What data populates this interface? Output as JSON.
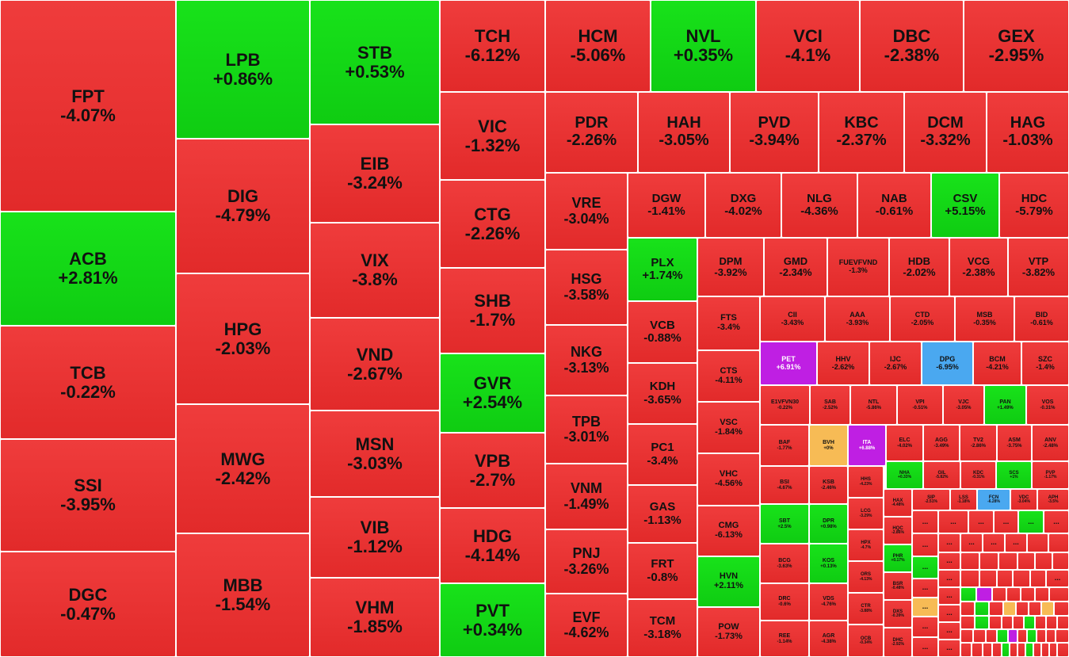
{
  "colors": {
    "down": "#e52d2d",
    "up": "#12d615",
    "ceiling": "#bf1fe3",
    "floor": "#4aa8f0",
    "flat": "#f7bb55"
  },
  "more_label": "...",
  "tiles": [
    {
      "t": "FPT",
      "c": "-4.07%"
    },
    {
      "t": "ACB",
      "c": "+2.81%"
    },
    {
      "t": "TCB",
      "c": "-0.22%"
    },
    {
      "t": "SSI",
      "c": "-3.95%"
    },
    {
      "t": "DGC",
      "c": "-0.47%"
    },
    {
      "t": "LPB",
      "c": "+0.86%"
    },
    {
      "t": "DIG",
      "c": "-4.79%"
    },
    {
      "t": "HPG",
      "c": "-2.03%"
    },
    {
      "t": "MWG",
      "c": "-2.42%"
    },
    {
      "t": "MBB",
      "c": "-1.54%"
    },
    {
      "t": "STB",
      "c": "+0.53%"
    },
    {
      "t": "EIB",
      "c": "-3.24%"
    },
    {
      "t": "VIX",
      "c": "-3.8%"
    },
    {
      "t": "VND",
      "c": "-2.67%"
    },
    {
      "t": "MSN",
      "c": "-3.03%"
    },
    {
      "t": "VIB",
      "c": "-1.12%"
    },
    {
      "t": "VHM",
      "c": "-1.85%"
    },
    {
      "t": "TCH",
      "c": "-6.12%"
    },
    {
      "t": "VIC",
      "c": "-1.32%"
    },
    {
      "t": "CTG",
      "c": "-2.26%"
    },
    {
      "t": "SHB",
      "c": "-1.7%"
    },
    {
      "t": "GVR",
      "c": "+2.54%"
    },
    {
      "t": "VPB",
      "c": "-2.7%"
    },
    {
      "t": "HDG",
      "c": "-4.14%"
    },
    {
      "t": "PVT",
      "c": "+0.34%"
    },
    {
      "t": "HCM",
      "c": "-5.06%"
    },
    {
      "t": "NVL",
      "c": "+0.35%"
    },
    {
      "t": "VCI",
      "c": "-4.1%"
    },
    {
      "t": "DBC",
      "c": "-2.38%"
    },
    {
      "t": "GEX",
      "c": "-2.95%"
    },
    {
      "t": "PDR",
      "c": "-2.26%"
    },
    {
      "t": "HAH",
      "c": "-3.05%"
    },
    {
      "t": "PVD",
      "c": "-3.94%"
    },
    {
      "t": "KBC",
      "c": "-2.37%"
    },
    {
      "t": "DCM",
      "c": "-3.32%"
    },
    {
      "t": "HAG",
      "c": "-1.03%"
    },
    {
      "t": "VRE",
      "c": "-3.04%"
    },
    {
      "t": "HSG",
      "c": "-3.58%"
    },
    {
      "t": "NKG",
      "c": "-3.13%"
    },
    {
      "t": "TPB",
      "c": "-3.01%"
    },
    {
      "t": "VNM",
      "c": "-1.49%"
    },
    {
      "t": "PNJ",
      "c": "-3.26%"
    },
    {
      "t": "EVF",
      "c": "-4.62%"
    },
    {
      "t": "DGW",
      "c": "-1.41%"
    },
    {
      "t": "DXG",
      "c": "-4.02%"
    },
    {
      "t": "NLG",
      "c": "-4.36%"
    },
    {
      "t": "NAB",
      "c": "-0.61%"
    },
    {
      "t": "CSV",
      "c": "+5.15%"
    },
    {
      "t": "HDC",
      "c": "-5.79%"
    },
    {
      "t": "PLX",
      "c": "+1.74%"
    },
    {
      "t": "VCB",
      "c": "-0.88%"
    },
    {
      "t": "KDH",
      "c": "-3.65%"
    },
    {
      "t": "PC1",
      "c": "-3.4%"
    },
    {
      "t": "GAS",
      "c": "-1.13%"
    },
    {
      "t": "FRT",
      "c": "-0.8%"
    },
    {
      "t": "TCM",
      "c": "-3.18%"
    },
    {
      "t": "DPM",
      "c": "-3.92%"
    },
    {
      "t": "GMD",
      "c": "-2.34%"
    },
    {
      "t": "FUEVFVND",
      "c": "-1.3%"
    },
    {
      "t": "HDB",
      "c": "-2.02%"
    },
    {
      "t": "VCG",
      "c": "-2.38%"
    },
    {
      "t": "VTP",
      "c": "-3.82%"
    },
    {
      "t": "FTS",
      "c": "-3.4%"
    },
    {
      "t": "CTS",
      "c": "-4.11%"
    },
    {
      "t": "VSC",
      "c": "-1.84%"
    },
    {
      "t": "VHC",
      "c": "-4.56%"
    },
    {
      "t": "CMG",
      "c": "-6.13%"
    },
    {
      "t": "HVN",
      "c": "+2.11%"
    },
    {
      "t": "POW",
      "c": "-1.73%"
    },
    {
      "t": "CII",
      "c": "-3.43%"
    },
    {
      "t": "AAA",
      "c": "-3.93%"
    },
    {
      "t": "CTD",
      "c": "-2.05%"
    },
    {
      "t": "MSB",
      "c": "-0.35%"
    },
    {
      "t": "BID",
      "c": "-0.61%"
    },
    {
      "t": "PET",
      "c": "+6.91%"
    },
    {
      "t": "HHV",
      "c": "-2.62%"
    },
    {
      "t": "IJC",
      "c": "-2.67%"
    },
    {
      "t": "DPG",
      "c": "-6.95%"
    },
    {
      "t": "BCM",
      "c": "-4.21%"
    },
    {
      "t": "SZC",
      "c": "-1.4%"
    },
    {
      "t": "E1VFVN30",
      "c": "-0.22%"
    },
    {
      "t": "SAB",
      "c": "-2.52%"
    },
    {
      "t": "NTL",
      "c": "-5.86%"
    },
    {
      "t": "VPI",
      "c": "-0.51%"
    },
    {
      "t": "VJC",
      "c": "-3.05%"
    },
    {
      "t": "PAN",
      "c": "+1.49%"
    },
    {
      "t": "VOS",
      "c": "-0.31%"
    },
    {
      "t": "BAF",
      "c": "-1.77%"
    },
    {
      "t": "BVH",
      "c": "+0%"
    },
    {
      "t": "ITA",
      "c": "+6.88%"
    },
    {
      "t": "ELC",
      "c": "-4.02%"
    },
    {
      "t": "AGG",
      "c": "-3.49%"
    },
    {
      "t": "TV2",
      "c": "-2.86%"
    },
    {
      "t": "ASM",
      "c": "-3.75%"
    },
    {
      "t": "ANV",
      "c": "-2.48%"
    },
    {
      "t": "BSI",
      "c": "-4.67%"
    },
    {
      "t": "KSB",
      "c": "-2.46%"
    },
    {
      "t": "SBT",
      "c": "+2.5%"
    },
    {
      "t": "DPR",
      "c": "+0.98%"
    },
    {
      "t": "BCG",
      "c": "-3.63%"
    },
    {
      "t": "KOS",
      "c": "+0.13%"
    },
    {
      "t": "DRC",
      "c": "-0.6%"
    },
    {
      "t": "VDS",
      "c": "-4.76%"
    },
    {
      "t": "REE",
      "c": "-1.14%"
    },
    {
      "t": "AGR",
      "c": "-4.38%"
    },
    {
      "t": "HHS",
      "c": "-4.23%"
    },
    {
      "t": "LCG",
      "c": "-3.29%"
    },
    {
      "t": "HPX",
      "c": "-4.7%"
    },
    {
      "t": "ORS",
      "c": "-4.13%"
    },
    {
      "t": "CTR",
      "c": "-3.88%"
    },
    {
      "t": "OCB",
      "c": "-0.34%"
    },
    {
      "t": "NHA",
      "c": "+0.33%"
    },
    {
      "t": "GIL",
      "c": "-5.82%"
    },
    {
      "t": "KDC",
      "c": "-0.31%"
    },
    {
      "t": "SCS",
      "c": "+1%"
    },
    {
      "t": "PVP",
      "c": "-1.17%"
    },
    {
      "t": "HAX",
      "c": "-4.48%"
    },
    {
      "t": "HQC",
      "c": "-2.86%"
    },
    {
      "t": "PHR",
      "c": "+0.17%"
    },
    {
      "t": "BSR",
      "c": "-0.48%"
    },
    {
      "t": "DXS",
      "c": "-0.39%"
    },
    {
      "t": "DHC",
      "c": "-2.92%"
    },
    {
      "t": "SIP",
      "c": "-2.51%"
    },
    {
      "t": "LSS",
      "c": "-1.18%"
    },
    {
      "t": "FCN",
      "c": "-6.28%"
    },
    {
      "t": "VDC",
      "c": "-3.04%"
    },
    {
      "t": "APH",
      "c": "-3.5%"
    }
  ]
}
